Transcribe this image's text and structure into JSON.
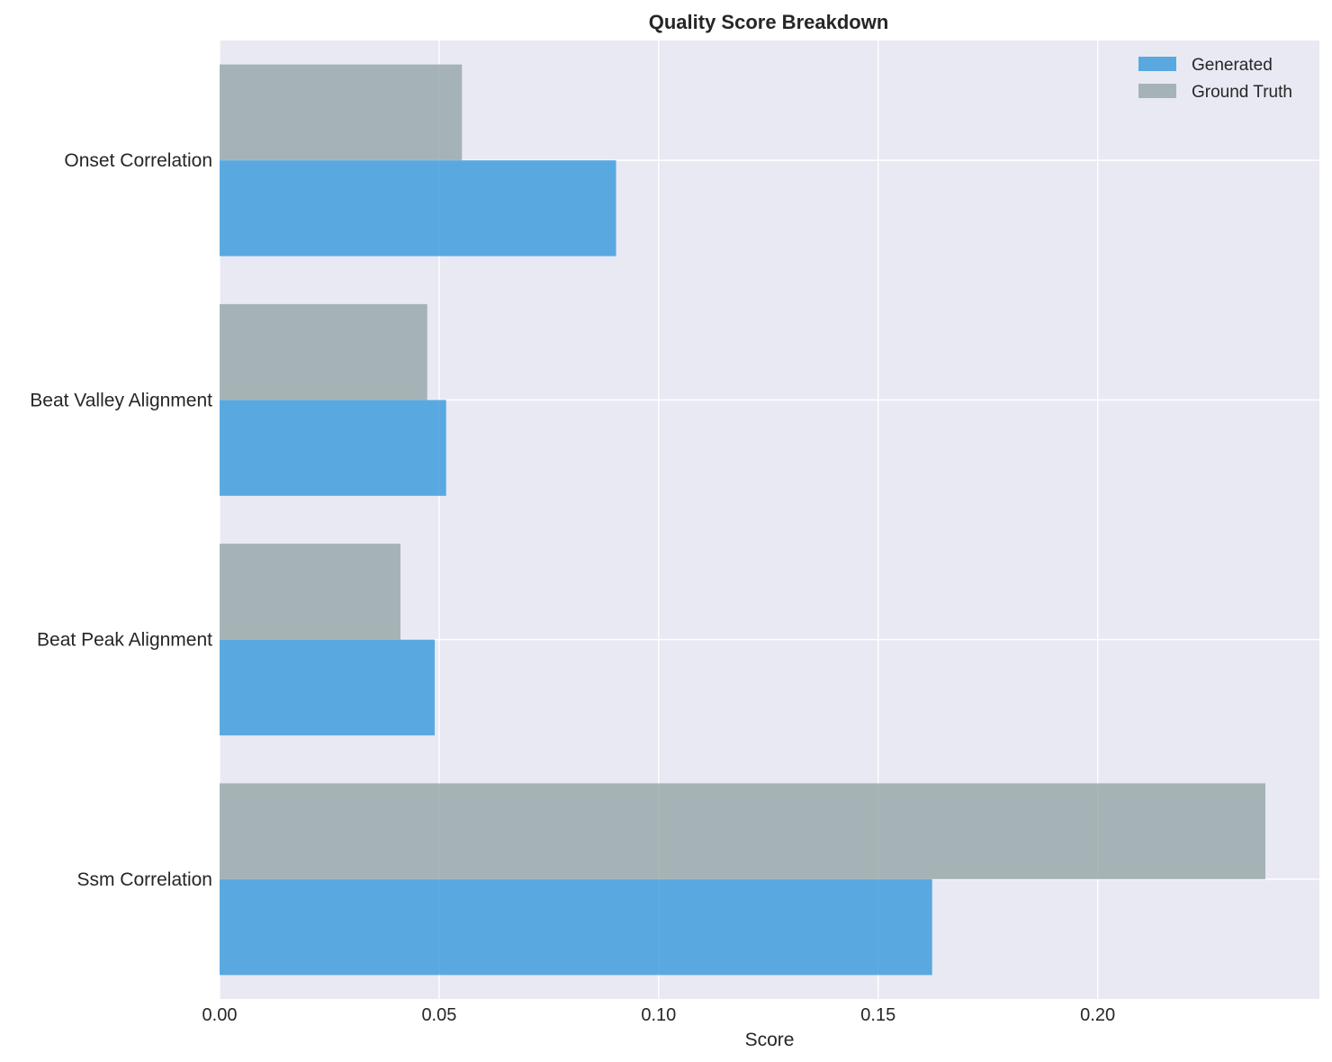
{
  "chart_data": {
    "type": "bar",
    "orientation": "horizontal",
    "title": "Quality Score Breakdown",
    "xlabel": "Score",
    "ylabel": "",
    "categories": [
      "Onset Correlation",
      "Beat Valley Alignment",
      "Beat Peak Alignment",
      "Ssm Correlation"
    ],
    "series": [
      {
        "name": "Generated",
        "color": "#3498db",
        "values": [
          0.0903,
          0.0516,
          0.049,
          0.1623
        ]
      },
      {
        "name": "Ground Truth",
        "color": "#95a5a6",
        "values": [
          0.0552,
          0.0473,
          0.0412,
          0.2382
        ]
      }
    ],
    "xlim": [
      0,
      0.2505
    ],
    "xticks": [
      0.0,
      0.05,
      0.1,
      0.15,
      0.2
    ],
    "xtick_labels": [
      "0.00",
      "0.05",
      "0.10",
      "0.15",
      "0.20"
    ],
    "grid": true,
    "legend": {
      "position": "top-right",
      "entries": [
        "Generated",
        "Ground Truth"
      ]
    },
    "bar_alpha": 0.8
  }
}
